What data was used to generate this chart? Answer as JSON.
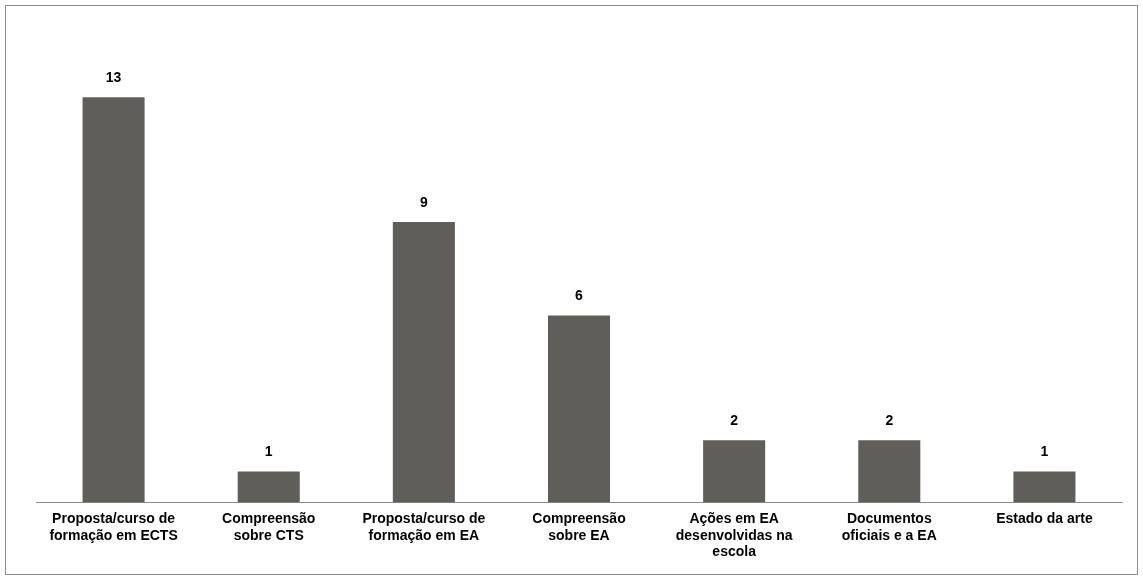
{
  "chart_data": {
    "type": "bar",
    "categories": [
      "Proposta/curso de formação em ECTS",
      "Compreensão sobre CTS",
      "Proposta/curso de formação em EA",
      "Compreensão sobre EA",
      "Ações em EA desenvolvidas na escola",
      "Documentos oficiais e a EA",
      "Estado da arte"
    ],
    "values": [
      13,
      1,
      9,
      6,
      2,
      2,
      1
    ],
    "color": "#5f5e5a",
    "data_labels": true,
    "grid": false,
    "legend": false
  }
}
